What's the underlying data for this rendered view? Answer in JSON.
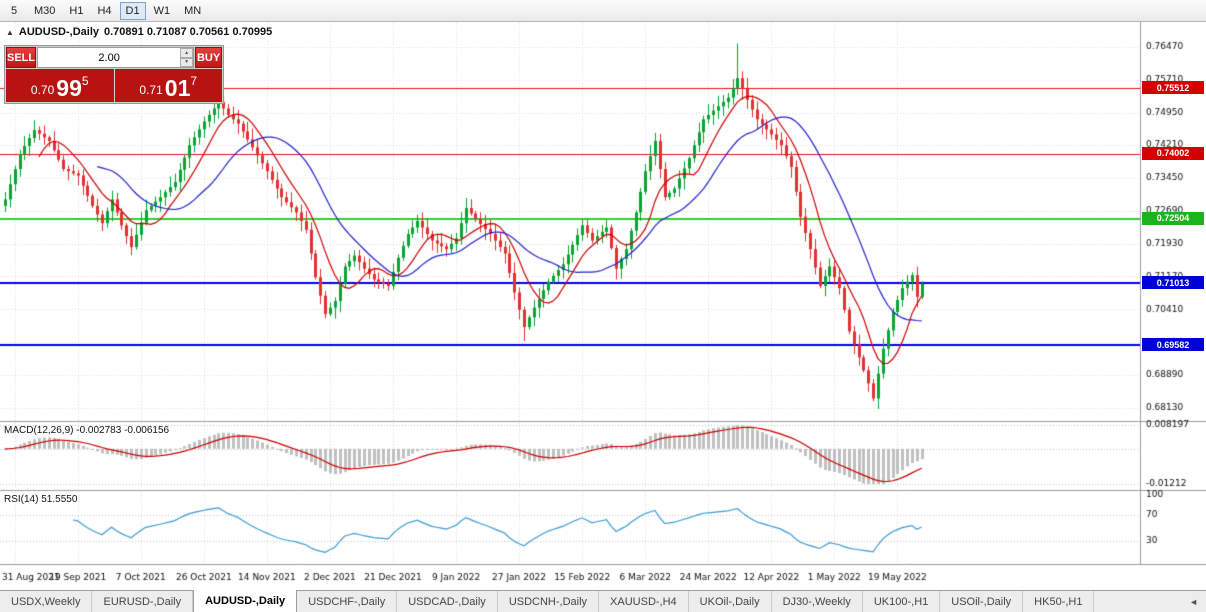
{
  "toolbar": {
    "timeframes": [
      {
        "label": "5",
        "active": false
      },
      {
        "label": "M30",
        "active": false
      },
      {
        "label": "H1",
        "active": false
      },
      {
        "label": "H4",
        "active": false
      },
      {
        "label": "D1",
        "active": true
      },
      {
        "label": "W1",
        "active": false
      },
      {
        "label": "MN",
        "active": false
      }
    ]
  },
  "chart_header": {
    "symbol": "AUDUSD-,Daily",
    "ohlc": "0.70891 0.71087 0.70561 0.70995"
  },
  "trade_panel": {
    "sell_label": "SELL",
    "buy_label": "BUY",
    "lot_size": "2.00",
    "sell_price": {
      "prefix": "0.70",
      "big": "99",
      "sup": "5"
    },
    "buy_price": {
      "prefix": "0.71",
      "big": "01",
      "sup": "7"
    }
  },
  "indicators": {
    "macd_label": "MACD(12,26,9) -0.002783 -0.006156",
    "rsi_label": "RSI(14) 51.5550"
  },
  "chart_data": {
    "type": "candlestick",
    "symbol": "AUDUSD-",
    "timeframe": "Daily",
    "ohlc_display": {
      "open": "0.70891",
      "high": "0.71087",
      "low": "0.70561",
      "close": "0.70995"
    },
    "colors": {
      "bull": "#0aa334",
      "bear": "#e03232",
      "ma_fast": "#cc0000",
      "ma_slow": "#2323cc",
      "macd_hist": "#c0c0c0",
      "macd_signal": "#cc0000",
      "rsi_line": "#3d9bd5",
      "grid": "#dedede",
      "axis_text": "#111111"
    },
    "y_axis_labels": [
      "0.76470",
      "0.75710",
      "0.74950",
      "0.74210",
      "0.73450",
      "0.72690",
      "0.71930",
      "0.71170",
      "0.70410",
      "0.69650",
      "0.68890",
      "0.68130"
    ],
    "x_axis_labels": [
      {
        "i": 2,
        "label": "31 Aug 2021"
      },
      {
        "i": 15,
        "label": "19 Sep 2021"
      },
      {
        "i": 28,
        "label": "7 Oct 2021"
      },
      {
        "i": 41,
        "label": "26 Oct 2021"
      },
      {
        "i": 54,
        "label": "14 Nov 2021"
      },
      {
        "i": 67,
        "label": "2 Dec 2021"
      },
      {
        "i": 80,
        "label": "21 Dec 2021"
      },
      {
        "i": 93,
        "label": "9 Jan 2022"
      },
      {
        "i": 106,
        "label": "27 Jan 2022"
      },
      {
        "i": 119,
        "label": "15 Feb 2022"
      },
      {
        "i": 132,
        "label": "6 Mar 2022"
      },
      {
        "i": 145,
        "label": "24 Mar 2022"
      },
      {
        "i": 158,
        "label": "12 Apr 2022"
      },
      {
        "i": 171,
        "label": "1 May 2022"
      },
      {
        "i": 184,
        "label": "19 May 2022"
      }
    ],
    "num_candles": 190,
    "close_anchors": [
      [
        0,
        0.7295
      ],
      [
        3,
        0.74
      ],
      [
        6,
        0.7455
      ],
      [
        9,
        0.743
      ],
      [
        12,
        0.7365
      ],
      [
        15,
        0.735
      ],
      [
        18,
        0.728
      ],
      [
        20,
        0.724
      ],
      [
        22,
        0.7295
      ],
      [
        24,
        0.7235
      ],
      [
        26,
        0.7185
      ],
      [
        29,
        0.727
      ],
      [
        32,
        0.73
      ],
      [
        35,
        0.7335
      ],
      [
        38,
        0.742
      ],
      [
        41,
        0.7475
      ],
      [
        44,
        0.752
      ],
      [
        46,
        0.749
      ],
      [
        48,
        0.747
      ],
      [
        51,
        0.7415
      ],
      [
        54,
        0.736
      ],
      [
        57,
        0.73
      ],
      [
        60,
        0.7265
      ],
      [
        62,
        0.7225
      ],
      [
        64,
        0.7115
      ],
      [
        66,
        0.703
      ],
      [
        68,
        0.706
      ],
      [
        70,
        0.714
      ],
      [
        72,
        0.7165
      ],
      [
        74,
        0.7135
      ],
      [
        76,
        0.711
      ],
      [
        79,
        0.7095
      ],
      [
        81,
        0.716
      ],
      [
        83,
        0.7215
      ],
      [
        85,
        0.7245
      ],
      [
        88,
        0.72
      ],
      [
        91,
        0.718
      ],
      [
        93,
        0.7205
      ],
      [
        95,
        0.7275
      ],
      [
        97,
        0.725
      ],
      [
        100,
        0.7215
      ],
      [
        103,
        0.717
      ],
      [
        105,
        0.708
      ],
      [
        107,
        0.7
      ],
      [
        109,
        0.7045
      ],
      [
        112,
        0.7105
      ],
      [
        115,
        0.7145
      ],
      [
        117,
        0.719
      ],
      [
        119,
        0.7235
      ],
      [
        121,
        0.72
      ],
      [
        124,
        0.723
      ],
      [
        126,
        0.7135
      ],
      [
        128,
        0.718
      ],
      [
        130,
        0.7265
      ],
      [
        132,
        0.736
      ],
      [
        134,
        0.743
      ],
      [
        136,
        0.73
      ],
      [
        138,
        0.732
      ],
      [
        141,
        0.739
      ],
      [
        144,
        0.748
      ],
      [
        147,
        0.751
      ],
      [
        149,
        0.753
      ],
      [
        151,
        0.7575
      ],
      [
        153,
        0.7525
      ],
      [
        155,
        0.748
      ],
      [
        158,
        0.7445
      ],
      [
        160,
        0.742
      ],
      [
        162,
        0.737
      ],
      [
        164,
        0.7255
      ],
      [
        166,
        0.718
      ],
      [
        168,
        0.7095
      ],
      [
        170,
        0.714
      ],
      [
        172,
        0.709
      ],
      [
        174,
        0.699
      ],
      [
        176,
        0.693
      ],
      [
        178,
        0.687
      ],
      [
        179,
        0.6835
      ],
      [
        181,
        0.695
      ],
      [
        183,
        0.7035
      ],
      [
        185,
        0.709
      ],
      [
        187,
        0.712
      ],
      [
        188,
        0.707
      ],
      [
        189,
        0.70995
      ]
    ],
    "spikes": [
      {
        "i": 6,
        "h": 0.7478
      },
      {
        "i": 44,
        "h": 0.7555
      },
      {
        "i": 107,
        "l": 0.6968
      },
      {
        "i": 151,
        "h": 0.7655
      },
      {
        "i": 179,
        "l": 0.6829
      }
    ],
    "ma_fast_period": 8,
    "ma_slow_period": 20,
    "h_lines": [
      {
        "price": 0.75512,
        "label": "0.75512",
        "color": "#ee1111",
        "badge": "#d40000",
        "width": 1
      },
      {
        "price": 0.74002,
        "label": "0.74002",
        "color": "#ee1111",
        "badge": "#d40000",
        "width": 1
      },
      {
        "price": 0.72504,
        "label": "0.72504",
        "color": "#33cc33",
        "badge": "#1db31d",
        "width": 2
      },
      {
        "price": 0.71013,
        "label": "0.71013",
        "color": "#0000ee",
        "badge": "#0000d8",
        "width": 2
      },
      {
        "price": 0.69582,
        "label": "0.69582",
        "color": "#0000ee",
        "badge": "#0000d8",
        "width": 2
      }
    ],
    "macd": {
      "params": [
        12,
        26,
        9
      ],
      "values": [
        -0.002783,
        -0.006156
      ],
      "scale_labels": [
        "0.008197",
        "-0.01212"
      ],
      "scale_top": 0.008197,
      "scale_bottom": -0.01212
    },
    "rsi": {
      "period": 14,
      "value": 51.555,
      "scale_labels": [
        100,
        70,
        30
      ],
      "levels": [
        70,
        30
      ]
    }
  },
  "tabbar": {
    "scroll_arrow": "◄",
    "tabs": [
      {
        "label": "USDX,Weekly",
        "active": false
      },
      {
        "label": "EURUSD-,Daily",
        "active": false
      },
      {
        "label": "AUDUSD-,Daily",
        "active": true
      },
      {
        "label": "USDCHF-,Daily",
        "active": false
      },
      {
        "label": "USDCAD-,Daily",
        "active": false
      },
      {
        "label": "USDCNH-,Daily",
        "active": false
      },
      {
        "label": "XAUUSD-,H4",
        "active": false
      },
      {
        "label": "UKOil-,Daily",
        "active": false
      },
      {
        "label": "DJ30-,Weekly",
        "active": false
      },
      {
        "label": "UK100-,H1",
        "active": false
      },
      {
        "label": "USOil-,Daily",
        "active": false
      },
      {
        "label": "HK50-,H1",
        "active": false
      }
    ]
  }
}
